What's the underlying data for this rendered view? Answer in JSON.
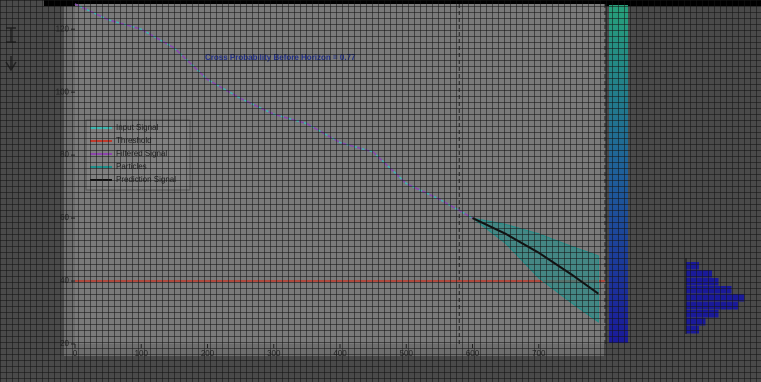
{
  "chart_data": [
    {
      "type": "line",
      "annotation": "Cross Probability Before Horizon = 0.77",
      "xlim": [
        0,
        800
      ],
      "xticks": [
        0,
        100,
        200,
        300,
        400,
        500,
        600,
        700
      ],
      "ylim": [
        20,
        128
      ],
      "yticks": [
        20,
        40,
        60,
        80,
        100,
        120
      ],
      "vlines": [
        580,
        800
      ],
      "series": [
        {
          "name": "Input Signal",
          "color": "#3fb7b0",
          "x": [
            0,
            50,
            100,
            150,
            200,
            250,
            300,
            350,
            400,
            450,
            500,
            550,
            600
          ],
          "values": [
            128,
            123,
            120,
            114,
            104,
            98,
            93,
            90,
            84,
            81,
            71,
            66,
            60
          ]
        },
        {
          "name": "Threshold",
          "color": "#c0392b",
          "x": [
            0,
            800
          ],
          "values": [
            40,
            40
          ]
        },
        {
          "name": "Filtered Signal",
          "color": "#8e44ad",
          "x": [
            0,
            50,
            100,
            150,
            200,
            250,
            300,
            350,
            400,
            450,
            500,
            550,
            600
          ],
          "values": [
            128,
            123,
            120,
            114,
            104,
            98,
            93,
            90,
            84,
            81,
            71,
            66,
            60
          ]
        },
        {
          "name": "Particles",
          "color": "#1f8f8a",
          "x": [
            600,
            650,
            700,
            750,
            790
          ],
          "values": [
            60,
            58,
            55,
            51,
            48
          ],
          "low": [
            60,
            52,
            41,
            33,
            27
          ]
        },
        {
          "name": "Prediction Signal",
          "color": "#111111",
          "x": [
            600,
            650,
            700,
            750,
            790
          ],
          "values": [
            60,
            55,
            49,
            42,
            36
          ]
        }
      ]
    },
    {
      "type": "barh",
      "color": "#1a1a9a",
      "categories": [
        null,
        null,
        null,
        null,
        null,
        null,
        null,
        null,
        null
      ],
      "values": [
        2,
        4,
        5,
        7,
        9,
        8,
        5,
        3,
        2
      ]
    }
  ]
}
